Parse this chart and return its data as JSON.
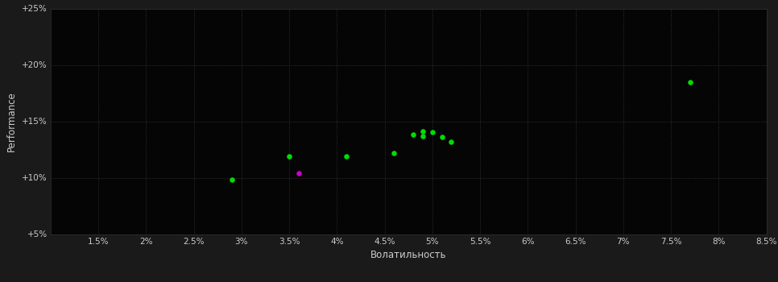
{
  "xlabel": "Волатильность",
  "ylabel": "Performance",
  "background_color": "#1a1a1a",
  "plot_bg_color": "#050505",
  "grid_color": "#3a3a3a",
  "text_color": "#cccccc",
  "xlim": [
    0.01,
    0.085
  ],
  "ylim": [
    0.05,
    0.25
  ],
  "xticks": [
    0.015,
    0.02,
    0.025,
    0.03,
    0.035,
    0.04,
    0.045,
    0.05,
    0.055,
    0.06,
    0.065,
    0.07,
    0.075,
    0.08,
    0.085
  ],
  "yticks": [
    0.05,
    0.1,
    0.15,
    0.2,
    0.25
  ],
  "green_points": [
    [
      0.029,
      0.098
    ],
    [
      0.035,
      0.119
    ],
    [
      0.041,
      0.119
    ],
    [
      0.046,
      0.122
    ],
    [
      0.048,
      0.138
    ],
    [
      0.049,
      0.141
    ],
    [
      0.049,
      0.137
    ],
    [
      0.05,
      0.14
    ],
    [
      0.051,
      0.136
    ],
    [
      0.052,
      0.132
    ],
    [
      0.077,
      0.185
    ]
  ],
  "magenta_points": [
    [
      0.036,
      0.104
    ]
  ],
  "green_color": "#00dd00",
  "magenta_color": "#cc00cc",
  "dot_size": 22
}
